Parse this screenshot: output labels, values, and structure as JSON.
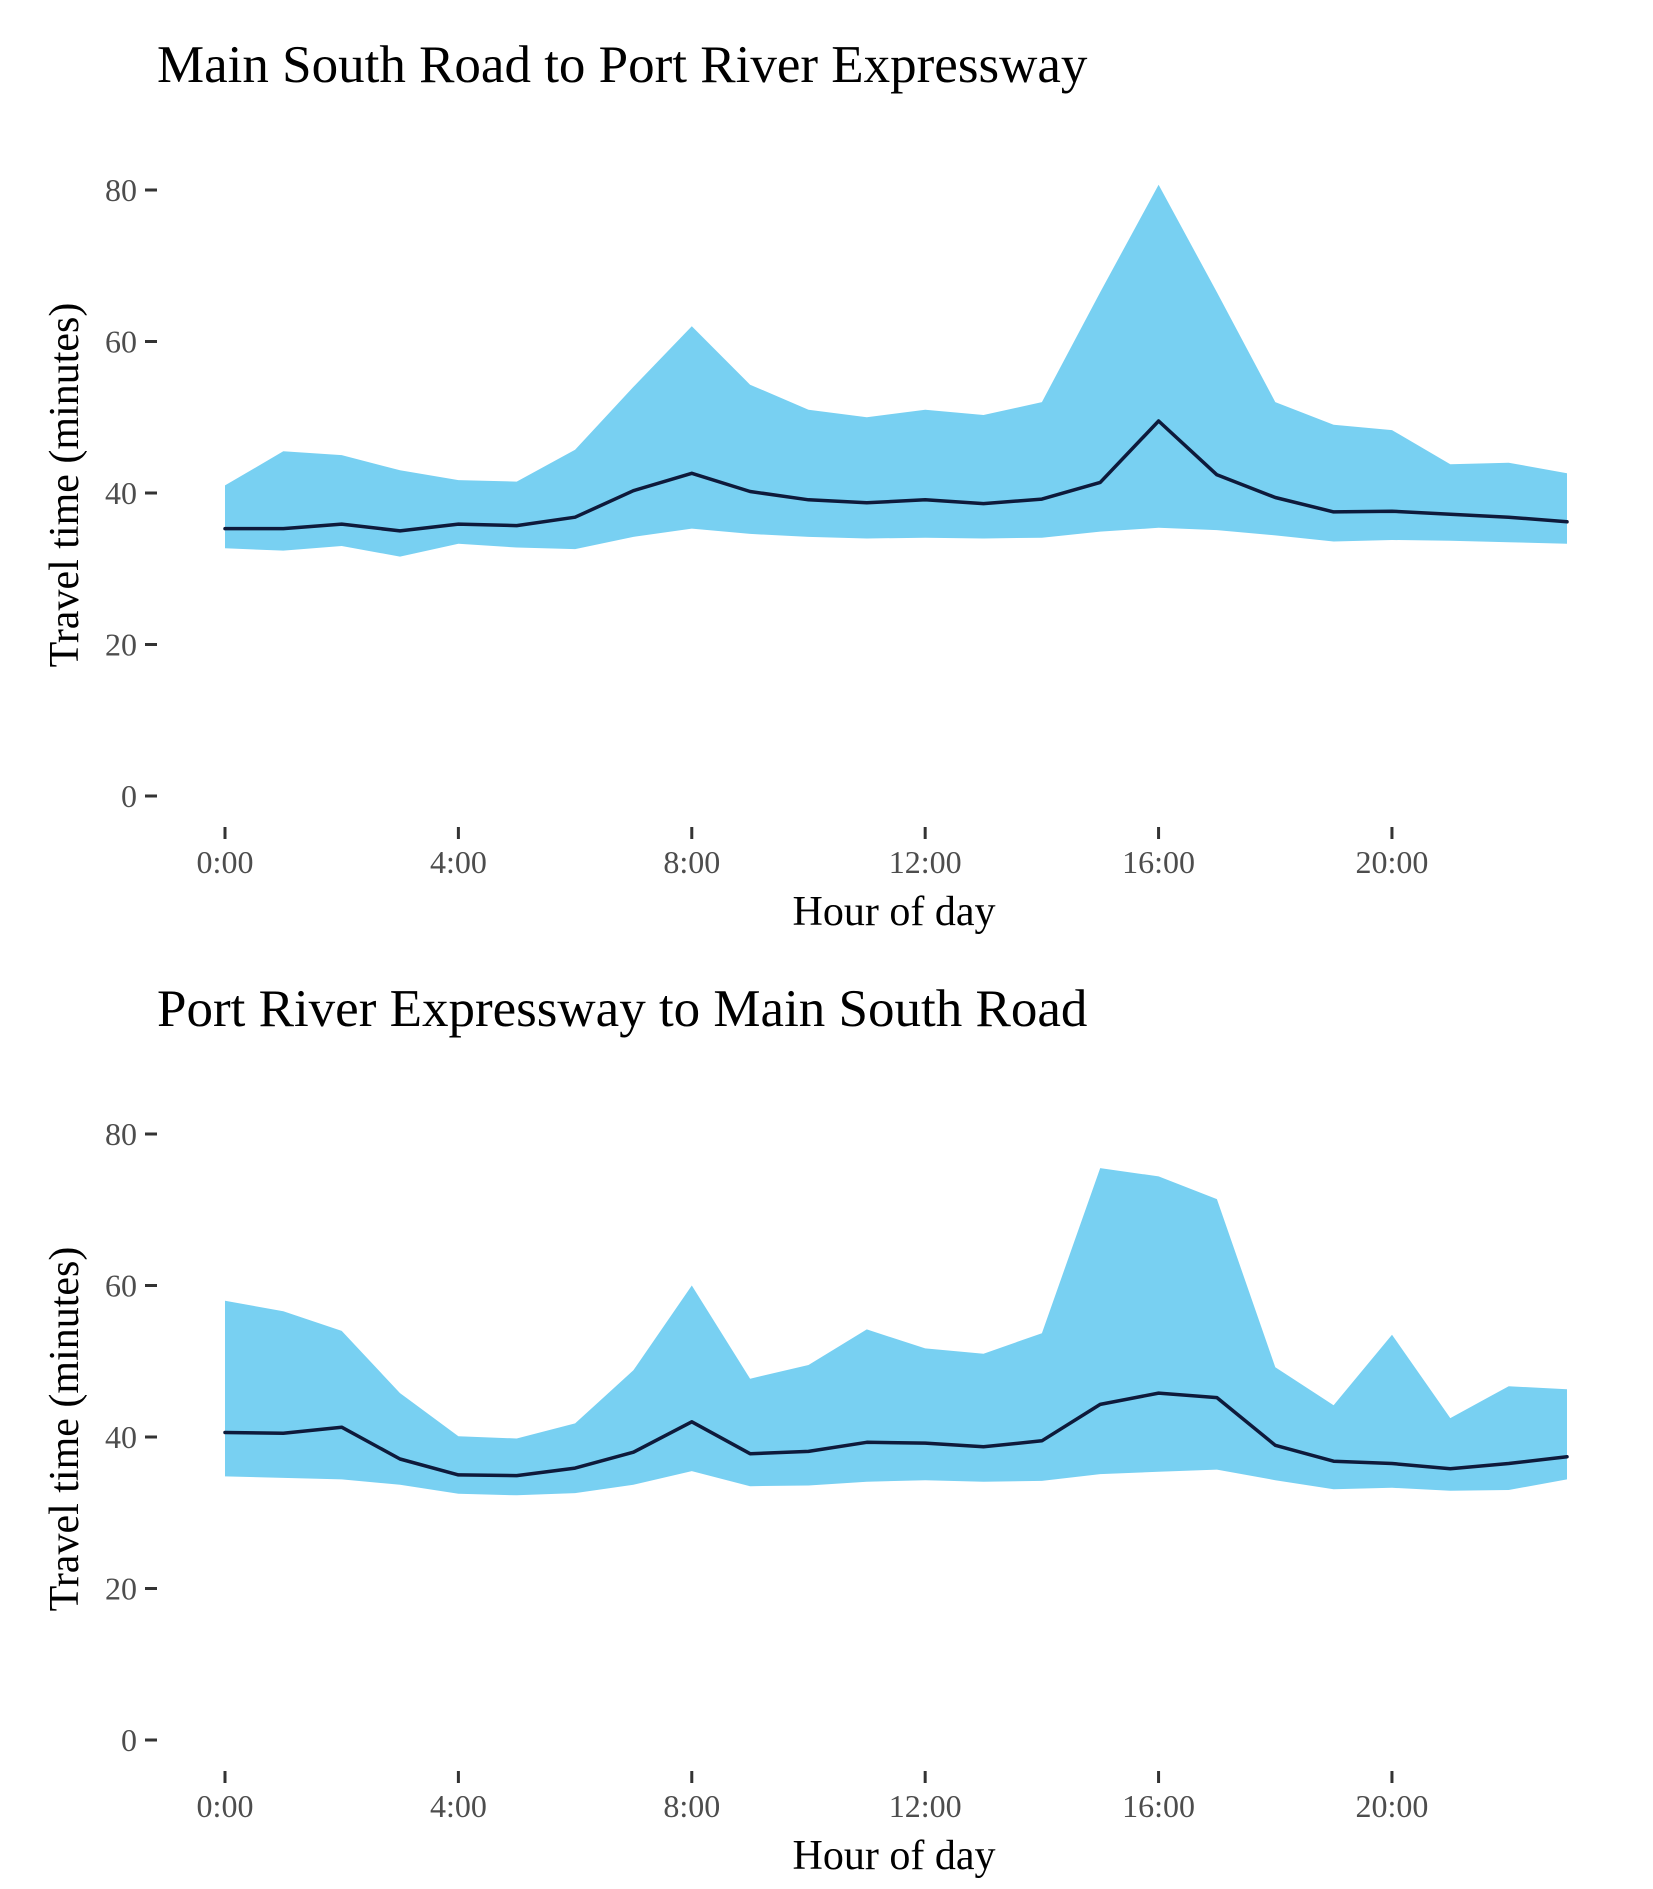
{
  "chart_data": [
    {
      "type": "area",
      "title": "Main South Road to Port River Expressway",
      "xlabel": "Hour of day",
      "ylabel": "Travel time (minutes)",
      "xlim": [
        0,
        23
      ],
      "ylim": [
        0,
        80
      ],
      "x_ticks": [
        0,
        4,
        8,
        12,
        16,
        20
      ],
      "x_tick_labels": [
        "0:00",
        "4:00",
        "8:00",
        "12:00",
        "16:00",
        "20:00"
      ],
      "y_ticks": [
        0,
        20,
        40,
        60,
        80
      ],
      "y_tick_labels": [
        "0",
        "20",
        "40",
        "60",
        "80"
      ],
      "grid": false,
      "legend": "none",
      "colors": {
        "band": "#78d0f2",
        "line": "#0e1a3b"
      },
      "x": [
        0,
        1,
        2,
        3,
        4,
        5,
        6,
        7,
        8,
        9,
        10,
        11,
        12,
        13,
        14,
        15,
        16,
        17,
        18,
        19,
        20,
        21,
        22,
        23
      ],
      "upper": [
        41.0,
        45.5,
        45.0,
        43.0,
        41.7,
        41.5,
        45.7,
        54.0,
        62.0,
        54.3,
        51.0,
        50.0,
        51.0,
        50.3,
        52.0,
        66.5,
        80.7,
        66.5,
        52.0,
        49.0,
        48.3,
        43.8,
        44.0,
        42.6
      ],
      "median": [
        35.3,
        35.3,
        35.9,
        35.0,
        35.9,
        35.7,
        36.8,
        40.3,
        42.6,
        40.2,
        39.1,
        38.7,
        39.1,
        38.6,
        39.2,
        41.4,
        49.5,
        42.4,
        39.4,
        37.5,
        37.6,
        37.2,
        36.8,
        36.2
      ],
      "lower": [
        32.7,
        32.4,
        33.0,
        31.6,
        33.3,
        32.8,
        32.6,
        34.2,
        35.3,
        34.6,
        34.2,
        34.0,
        34.1,
        34.0,
        34.1,
        34.9,
        35.4,
        35.1,
        34.4,
        33.6,
        33.8,
        33.7,
        33.5,
        33.3
      ]
    },
    {
      "type": "area",
      "title": "Port River Expressway to Main South Road",
      "xlabel": "Hour of day",
      "ylabel": "Travel time (minutes)",
      "xlim": [
        0,
        23
      ],
      "ylim": [
        0,
        80
      ],
      "x_ticks": [
        0,
        4,
        8,
        12,
        16,
        20
      ],
      "x_tick_labels": [
        "0:00",
        "4:00",
        "8:00",
        "12:00",
        "16:00",
        "20:00"
      ],
      "y_ticks": [
        0,
        20,
        40,
        60,
        80
      ],
      "y_tick_labels": [
        "0",
        "20",
        "40",
        "60",
        "80"
      ],
      "grid": false,
      "legend": "none",
      "colors": {
        "band": "#78d0f2",
        "line": "#0e1a3b"
      },
      "x": [
        0,
        1,
        2,
        3,
        4,
        5,
        6,
        7,
        8,
        9,
        10,
        11,
        12,
        13,
        14,
        15,
        16,
        17,
        18,
        19,
        20,
        21,
        22,
        23
      ],
      "upper": [
        58.0,
        56.6,
        54.0,
        45.8,
        40.1,
        39.8,
        41.8,
        48.8,
        60.0,
        47.7,
        49.5,
        54.2,
        51.7,
        51.0,
        53.7,
        75.5,
        74.4,
        71.4,
        49.2,
        44.2,
        53.5,
        42.5,
        46.7,
        46.3
      ],
      "median": [
        40.6,
        40.5,
        41.3,
        37.1,
        35.0,
        34.9,
        35.9,
        38.0,
        42.0,
        37.8,
        38.1,
        39.3,
        39.2,
        38.7,
        39.5,
        44.3,
        45.8,
        45.2,
        38.9,
        36.8,
        36.5,
        35.8,
        36.5,
        37.4
      ],
      "lower": [
        34.8,
        34.6,
        34.4,
        33.7,
        32.5,
        32.3,
        32.6,
        33.7,
        35.5,
        33.5,
        33.6,
        34.1,
        34.3,
        34.1,
        34.2,
        35.1,
        35.4,
        35.7,
        34.3,
        33.1,
        33.3,
        32.9,
        33.0,
        34.4
      ]
    }
  ]
}
